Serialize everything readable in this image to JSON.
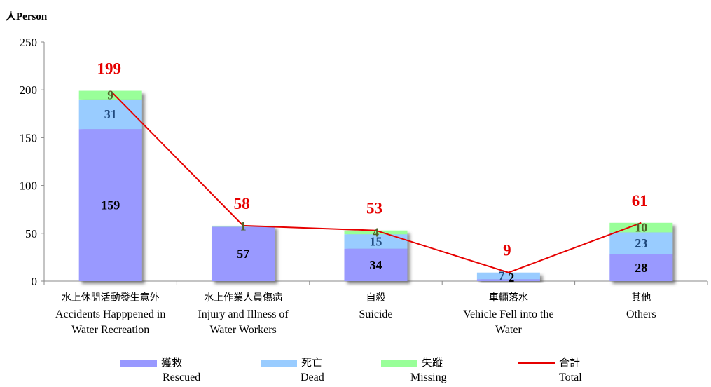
{
  "y_axis_title": "人Person",
  "chart_data": {
    "type": "bar",
    "stacked": true,
    "ylabel": "人Person",
    "ylim": [
      0,
      250
    ],
    "yticks": [
      0,
      50,
      100,
      150,
      200,
      250
    ],
    "categories": [
      {
        "zh": "水上休閒活動發生意外",
        "en": [
          "Accidents Happpened in",
          "Water Recreation"
        ]
      },
      {
        "zh": "水上作業人員傷病",
        "en": [
          "Injury and Illness of",
          "Water Workers"
        ]
      },
      {
        "zh": "自殺",
        "en": [
          "Suicide"
        ]
      },
      {
        "zh": "車輛落水",
        "en": [
          "Vehicle Fell into the",
          "Water"
        ]
      },
      {
        "zh": "其他",
        "en": [
          "Others"
        ]
      }
    ],
    "series": [
      {
        "name": "獲救 Rescued",
        "zh": "獲救",
        "en": "Rescued",
        "kind": "bar",
        "color": "#9999ff",
        "label_color": "#000000",
        "values": [
          159,
          57,
          34,
          2,
          28
        ]
      },
      {
        "name": "死亡 Dead",
        "zh": "死亡",
        "en": "Dead",
        "kind": "bar",
        "color": "#99ccff",
        "label_color": "#1f497d",
        "values": [
          31,
          0,
          15,
          7,
          23
        ]
      },
      {
        "name": "失蹤 Missing",
        "zh": "失蹤",
        "en": "Missing",
        "kind": "bar",
        "color": "#99ff99",
        "label_color": "#4f6228",
        "values": [
          9,
          1,
          4,
          0,
          10
        ]
      },
      {
        "name": "合計 Total",
        "zh": "合計",
        "en": "Total",
        "kind": "line",
        "color": "#e60000",
        "label_color": "#e60000",
        "values": [
          199,
          58,
          53,
          9,
          61
        ]
      }
    ],
    "data_labels": [
      [
        "159",
        "31",
        "9"
      ],
      [
        "57",
        "",
        "1"
      ],
      [
        "34",
        "15",
        "4"
      ],
      [
        "2",
        "7",
        ""
      ],
      [
        "28",
        "23",
        "10"
      ]
    ],
    "total_labels": [
      "199",
      "58",
      "53",
      "9",
      "61"
    ],
    "grid": false,
    "legend_position": "bottom"
  }
}
